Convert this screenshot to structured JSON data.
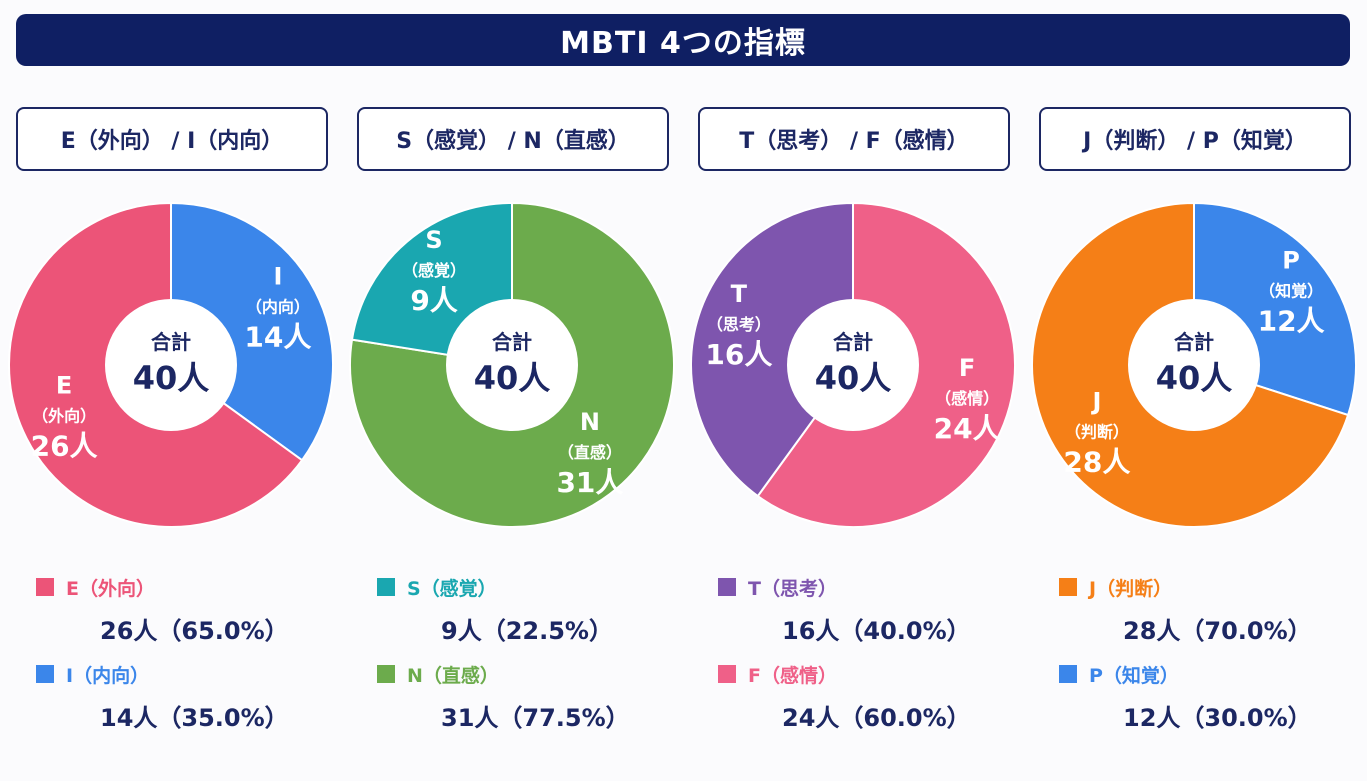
{
  "title": "MBTI 4つの指標",
  "center_label": "合計",
  "center_total": "40人",
  "chart_data": [
    {
      "type": "pie",
      "title": "E（外向） / I（内向）",
      "total": 40,
      "slices": [
        {
          "code": "E",
          "sub": "（外向）",
          "value": 26,
          "count_label": "26人",
          "legend_label": "E（外向）",
          "legend_value": "26人（65.0%）",
          "color": "#ec5478"
        },
        {
          "code": "I",
          "sub": "（内向）",
          "value": 14,
          "count_label": "14人",
          "legend_label": "I（内向）",
          "legend_value": "14人（35.0%）",
          "color": "#3b86ea"
        }
      ]
    },
    {
      "type": "pie",
      "title": "S（感覚） / N（直感）",
      "total": 40,
      "slices": [
        {
          "code": "S",
          "sub": "（感覚）",
          "value": 9,
          "count_label": "9人",
          "legend_label": "S（感覚）",
          "legend_value": "9人（22.5%）",
          "color": "#1aa7b0"
        },
        {
          "code": "N",
          "sub": "（直感）",
          "value": 31,
          "count_label": "31人",
          "legend_label": "N（直感）",
          "legend_value": "31人（77.5%）",
          "color": "#6cab4c"
        }
      ]
    },
    {
      "type": "pie",
      "title": "T（思考） / F（感情）",
      "total": 40,
      "slices": [
        {
          "code": "T",
          "sub": "（思考）",
          "value": 16,
          "count_label": "16人",
          "legend_label": "T（思考）",
          "legend_value": "16人（40.0%）",
          "color": "#7e55ae"
        },
        {
          "code": "F",
          "sub": "（感情）",
          "value": 24,
          "count_label": "24人",
          "legend_label": "F（感情）",
          "legend_value": "24人（60.0%）",
          "color": "#ef6088"
        }
      ]
    },
    {
      "type": "pie",
      "title": "J（判断） / P（知覚）",
      "total": 40,
      "slices": [
        {
          "code": "J",
          "sub": "（判断）",
          "value": 28,
          "count_label": "28人",
          "legend_label": "J（判断）",
          "legend_value": "28人（70.0%）",
          "color": "#f57f17"
        },
        {
          "code": "P",
          "sub": "（知覚）",
          "value": 12,
          "count_label": "12人",
          "legend_label": "P（知覚）",
          "legend_value": "12人（30.0%）",
          "color": "#3b86ea"
        }
      ]
    }
  ]
}
